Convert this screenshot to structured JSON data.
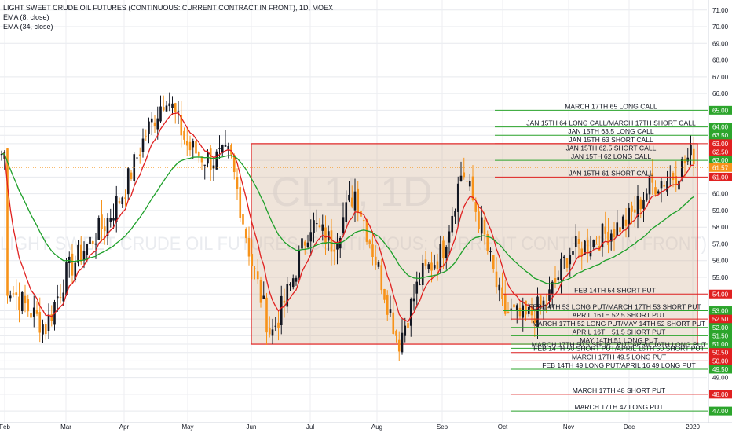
{
  "chart_data": {
    "type": "candlestick",
    "title": "LIGHT SWEET CRUDE OIL FUTURES (CONTINUOUS: CURRENT CONTRACT IN FRONT), 1D, MOEX",
    "watermark_symbol": "CL1!, 1D",
    "watermark_name": "LIGHT SWEET CRUDE OIL FUTURES (CONTINUOUS: CURRENT CONTRACT IN FRONT)",
    "indicators": [
      "EMA (8, close)",
      "EMA (34, close)"
    ],
    "ylim": [
      46.3,
      71.6
    ],
    "y_ticks": [
      "71.00",
      "70.00",
      "69.00",
      "68.00",
      "67.00",
      "66.00",
      "65.00",
      "64.00",
      "63.50",
      "63.00",
      "62.50",
      "62.00",
      "61.00",
      "60.00",
      "59.00",
      "58.00",
      "57.00",
      "56.00",
      "55.00",
      "54.00",
      "53.00",
      "52.50",
      "52.00",
      "51.50",
      "51.00",
      "50.50",
      "50.00",
      "49.50",
      "49.00",
      "48.00",
      "47.00"
    ],
    "x_ticks": [
      "Feb",
      "Mar",
      "Apr",
      "May",
      "Jun",
      "Jul",
      "Aug",
      "Sep",
      "Oct",
      "Nov",
      "Dec",
      "2020"
    ],
    "last_price": "61.57",
    "box": {
      "x_start": "Jun",
      "x_end": "2020",
      "y_low": 51.0,
      "y_high": 63.0
    },
    "option_levels": [
      {
        "price": 65.0,
        "price_label": "65.00",
        "label": "MARCH 17TH 65 LONG CALL",
        "kind": "long"
      },
      {
        "price": 64.0,
        "price_label": "64.00",
        "label": "JAN 15TH 64 LONG CALL/MARCH 17TH SHORT CALL",
        "kind": "long"
      },
      {
        "price": 63.5,
        "price_label": "63.50",
        "label": "JAN 15TH 63.5 LONG CALL",
        "kind": "long"
      },
      {
        "price": 63.0,
        "price_label": "63.00",
        "label": "JAN 15TH 63 SHORT CALL",
        "kind": "short"
      },
      {
        "price": 62.5,
        "price_label": "62.50",
        "label": "JAN 15TH 62.5 SHORT CALL",
        "kind": "short"
      },
      {
        "price": 62.0,
        "price_label": "62.00",
        "label": "JAN 15TH 62 LONG CALL",
        "kind": "long"
      },
      {
        "price": 61.0,
        "price_label": "61.00",
        "label": "JAN 15TH 61 SHORT CALL",
        "kind": "short"
      },
      {
        "price": 54.0,
        "price_label": "54.00",
        "label": "FEB 14TH 54 SHORT PUT",
        "kind": "short"
      },
      {
        "price": 53.0,
        "price_label": "53.00",
        "label": "FEB 14TH 53 LONG PUT/MARCH 17TH 53 SHORT PUT",
        "kind": "long"
      },
      {
        "price": 52.5,
        "price_label": "52.50",
        "label": "APRIL 16TH 52.5 SHORT PUT",
        "kind": "short"
      },
      {
        "price": 52.0,
        "price_label": "52.00",
        "label": "MARCH 17TH 52 LONG PUT/MAY 14TH 52 SHORT PUT",
        "kind": "long"
      },
      {
        "price": 51.5,
        "price_label": "51.50",
        "label": "APRIL 16TH 51.5 SHORT PUT",
        "kind": "long"
      },
      {
        "price": 51.0,
        "price_label": "51.00",
        "label": "MAY 14TH 51 LONG PUT",
        "kind": "long"
      },
      {
        "price": 50.75,
        "price_label": "",
        "label": "MARCH 17TH 50.5 SHORT PUT/APRIL 16TH LONG PUT",
        "kind": "long"
      },
      {
        "price": 50.5,
        "price_label": "50.50",
        "label": "FEB 14TH 50 SHORT PUT/APRIL 16TH 50 SHORT PUT",
        "kind": "short"
      },
      {
        "price": 50.0,
        "price_label": "50.00",
        "label": "MARCH 17TH 49.5 LONG PUT",
        "kind": "short"
      },
      {
        "price": 49.5,
        "price_label": "49.50",
        "label": "FEB 14TH 49 LONG PUT/APRIL 16 49 LONG PUT",
        "kind": "long"
      },
      {
        "price": 48.0,
        "price_label": "48.00",
        "label": "MARCH 17TH 48 SHORT PUT",
        "kind": "short"
      },
      {
        "price": 47.0,
        "price_label": "47.00",
        "label": "MARCH 17TH 47 LONG PUT",
        "kind": "long"
      }
    ],
    "price_path": [
      [
        "Feb",
        54.7
      ],
      [
        "Feb+",
        53.3
      ],
      [
        "Feb++",
        52.0
      ],
      [
        "Mar",
        55.2
      ],
      [
        "Mar+",
        56.8
      ],
      [
        "Mar++",
        58.2
      ],
      [
        "Apr",
        60.2
      ],
      [
        "Apr+",
        63.5
      ],
      [
        "Apr++",
        66.0
      ],
      [
        "May",
        62.8
      ],
      [
        "May+",
        62.0
      ],
      [
        "May++",
        62.3
      ],
      [
        "Jun",
        56.0
      ],
      [
        "Jun+",
        51.5
      ],
      [
        "Jun++",
        54.5
      ],
      [
        "Jul",
        58.3
      ],
      [
        "Jul+",
        57.0
      ],
      [
        "Jul++",
        60.2
      ],
      [
        "Aug",
        55.8
      ],
      [
        "Aug+",
        51.1
      ],
      [
        "Aug++",
        55.0
      ],
      [
        "Sep",
        56.5
      ],
      [
        "Sep+",
        61.5
      ],
      [
        "Sep++",
        57.8
      ],
      [
        "Oct",
        53.0
      ],
      [
        "Oct+",
        52.5
      ],
      [
        "Oct++",
        53.5
      ],
      [
        "Nov",
        56.5
      ],
      [
        "Nov+",
        57.0
      ],
      [
        "Nov++",
        57.7
      ],
      [
        "Dec",
        58.5
      ],
      [
        "Dec+",
        60.5
      ],
      [
        "Dec++",
        61.0
      ],
      [
        "2020",
        62.4
      ]
    ],
    "colors": {
      "up": "#131722",
      "down": "#f7931a",
      "ema_fast": "#e0201f",
      "ema_slow": "#1ea02a",
      "long_line": "#2ca52c",
      "short_line": "#e02020",
      "box_fill": "#d2b296",
      "box_stroke": "#e02020"
    }
  }
}
